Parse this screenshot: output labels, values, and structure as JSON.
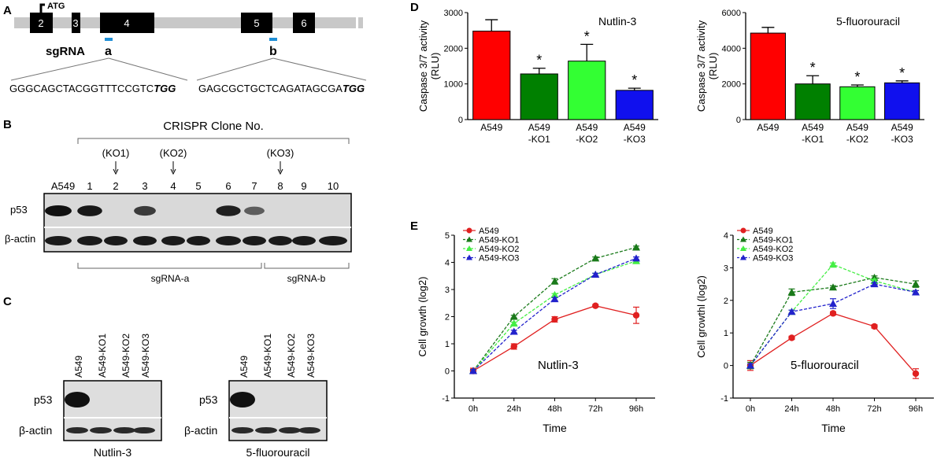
{
  "panelA": {
    "label": "A",
    "atg": "ATG",
    "exons": [
      "2",
      "3",
      "4",
      "5",
      "6"
    ],
    "sgrna_label": "sgRNA",
    "site_a": "a",
    "site_b": "b",
    "seq_a": "GGGCAGCTACGGTTTCCGTC",
    "pam_a": "TGG",
    "seq_b": "GAGCGCTGCTCAGATAGCGA",
    "pam_b": "TGG",
    "colors": {
      "intron": "#c8c8c8",
      "exon": "#000000",
      "sgrna": "#1f8fd6"
    }
  },
  "panelB": {
    "label": "B",
    "title": "CRISPR Clone No.",
    "ko_labels": [
      {
        "text": "(KO1)",
        "lane": "2"
      },
      {
        "text": "(KO2)",
        "lane": "4"
      },
      {
        "text": "(KO3)",
        "lane": "8"
      }
    ],
    "lanes": [
      "A549",
      "1",
      "2",
      "3",
      "4",
      "5",
      "6",
      "7",
      "8",
      "9",
      "10"
    ],
    "row_labels": [
      "p53",
      "β-actin"
    ],
    "group_a": "sgRNA-a",
    "group_b": "sgRNA-b",
    "p53_bands": [
      1.0,
      0.95,
      0,
      0.7,
      0,
      0,
      0.9,
      0.45,
      0,
      0,
      0
    ]
  },
  "panelC": {
    "label": "C",
    "blots": [
      {
        "caption": "Nutlin-3",
        "lanes": [
          "A549",
          "A549-KO1",
          "A549-KO2",
          "A549-KO3"
        ],
        "p53": [
          1,
          0,
          0,
          0
        ]
      },
      {
        "caption": "5-fluorouracil",
        "lanes": [
          "A549",
          "A549-KO1",
          "A549-KO2",
          "A549-KO3"
        ],
        "p53": [
          1,
          0,
          0,
          0
        ]
      }
    ],
    "row_labels": [
      "p53",
      "β-actin"
    ]
  },
  "panelD": {
    "label": "D"
  },
  "panelE": {
    "label": "E"
  },
  "chart_data": [
    {
      "type": "bar",
      "title": "Nutlin-3",
      "ylabel": "Caspase 3/7 activity (RLU)",
      "ylabel_lines": [
        "Caspase 3/7 activity",
        "(RLU)"
      ],
      "categories": [
        "A549",
        "A549-KO1",
        "A549-KO2",
        "A549-KO3"
      ],
      "category_lines": [
        [
          "A549"
        ],
        [
          "A549",
          "-KO1"
        ],
        [
          "A549",
          "-KO2"
        ],
        [
          "A549",
          "-KO3"
        ]
      ],
      "values": [
        2480,
        1280,
        1640,
        820
      ],
      "errors": [
        320,
        160,
        470,
        60
      ],
      "significance": [
        "",
        "*",
        "*",
        "*"
      ],
      "colors": [
        "#ff0000",
        "#008000",
        "#33ff33",
        "#1010ee"
      ],
      "ylim": [
        0,
        3000
      ],
      "yticks": [
        "0",
        "1000",
        "2000",
        "3000"
      ],
      "ytick_values": [
        0,
        1000,
        2000,
        3000
      ]
    },
    {
      "type": "bar",
      "title": "5-fluorouracil",
      "ylabel": "Caspase 3/7 activity (RLU)",
      "ylabel_lines": [
        "Caspase 3/7 activity",
        "(RLU)"
      ],
      "categories": [
        "A549",
        "A549-KO1",
        "A549-KO2",
        "A549-KO3"
      ],
      "category_lines": [
        [
          "A549"
        ],
        [
          "A549",
          "-KO1"
        ],
        [
          "A549",
          "-KO2"
        ],
        [
          "A549",
          "-KO3"
        ]
      ],
      "values": [
        4850,
        2000,
        1840,
        2060
      ],
      "errors": [
        320,
        460,
        100,
        110
      ],
      "significance": [
        "",
        "*",
        "*",
        "*"
      ],
      "colors": [
        "#ff0000",
        "#008000",
        "#33ff33",
        "#1010ee"
      ],
      "ylim": [
        0,
        6000
      ],
      "yticks": [
        "0",
        "2000",
        "4000",
        "6000"
      ],
      "ytick_values": [
        0,
        2000,
        4000,
        6000
      ]
    },
    {
      "type": "line",
      "title": "Nutlin-3",
      "xlabel": "Time",
      "ylabel": "Cell growth (log2)",
      "categories": [
        "0h",
        "24h",
        "48h",
        "72h",
        "96h"
      ],
      "ylim": [
        -1,
        5
      ],
      "yticks": [
        "-1",
        "0",
        "1",
        "2",
        "3",
        "4",
        "5"
      ],
      "series": [
        {
          "name": "A549",
          "values": [
            0,
            0.9,
            1.9,
            2.4,
            2.05
          ],
          "errors": [
            0.1,
            0.1,
            0.1,
            0.05,
            0.3
          ],
          "color": "#e02020",
          "marker": "circle",
          "dashed": false
        },
        {
          "name": "A549-KO1",
          "values": [
            0,
            2.0,
            3.3,
            4.15,
            4.55
          ],
          "errors": [
            0.05,
            0.05,
            0.1,
            0.05,
            0.05
          ],
          "color": "#1a7a1a",
          "marker": "triangle",
          "dashed": true
        },
        {
          "name": "A549-KO2",
          "values": [
            0,
            1.75,
            2.8,
            3.55,
            4.05
          ],
          "errors": [
            0.05,
            0.05,
            0.05,
            0.05,
            0.05
          ],
          "color": "#44ee44",
          "marker": "triangle",
          "dashed": true
        },
        {
          "name": "A549-KO3",
          "values": [
            0,
            1.45,
            2.65,
            3.55,
            4.15
          ],
          "errors": [
            0.05,
            0.05,
            0.05,
            0.05,
            0.05
          ],
          "color": "#2222cc",
          "marker": "triangle",
          "dashed": true
        }
      ]
    },
    {
      "type": "line",
      "title": "5-fluorouracil",
      "xlabel": "Time",
      "ylabel": "Cell growthl (log2)",
      "categories": [
        "0h",
        "24h",
        "48h",
        "72h",
        "96h"
      ],
      "ylim": [
        -1,
        4
      ],
      "yticks": [
        "-1",
        "0",
        "1",
        "2",
        "3",
        "4"
      ],
      "series": [
        {
          "name": "A549",
          "values": [
            0,
            0.85,
            1.6,
            1.2,
            -0.25
          ],
          "errors": [
            0.15,
            0.05,
            0.05,
            0.05,
            0.15
          ],
          "color": "#e02020",
          "marker": "circle",
          "dashed": false
        },
        {
          "name": "A549-KO1",
          "values": [
            0,
            2.25,
            2.4,
            2.7,
            2.5
          ],
          "errors": [
            0.1,
            0.1,
            0.05,
            0.05,
            0.1
          ],
          "color": "#1a7a1a",
          "marker": "triangle",
          "dashed": true
        },
        {
          "name": "A549-KO2",
          "values": [
            0,
            1.65,
            3.1,
            2.6,
            2.25
          ],
          "errors": [
            0.05,
            0.05,
            0.05,
            0.05,
            0.05
          ],
          "color": "#44ee44",
          "marker": "triangle",
          "dashed": true
        },
        {
          "name": "A549-KO3",
          "values": [
            0,
            1.65,
            1.9,
            2.5,
            2.25
          ],
          "errors": [
            0.05,
            0.05,
            0.15,
            0.05,
            0.05
          ],
          "color": "#2222cc",
          "marker": "triangle",
          "dashed": true
        }
      ]
    }
  ]
}
